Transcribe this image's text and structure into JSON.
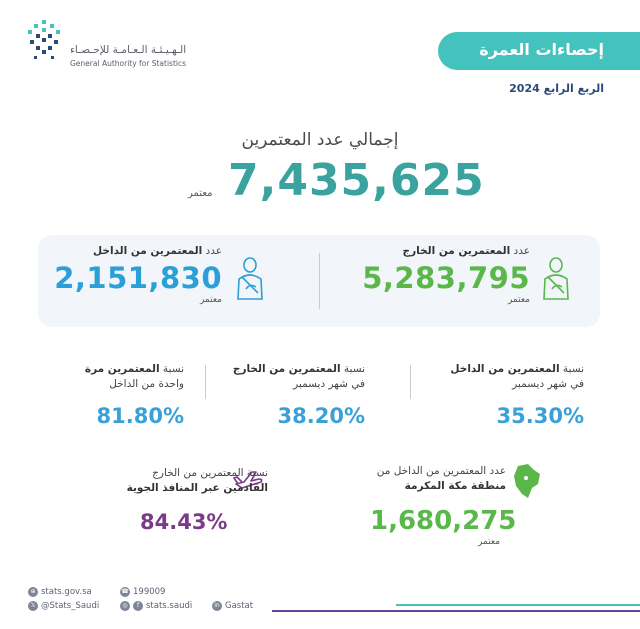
{
  "header": {
    "logo_ar": "الـهـيـئـة الـعـامـة للإحـصـاء",
    "logo_en": "General Authority for Statistics",
    "title": "إحصاءات العمرة",
    "quarter": "الربع الرابع 2024"
  },
  "total": {
    "label": "إجمالي عدد المعتمرين",
    "value": "7,435,625",
    "unit": "معتمر"
  },
  "card": {
    "outside_label_prefix": "عدد ",
    "outside_label_bold": "المعتمرين من الخارج",
    "outside_value": "5,283,795",
    "outside_unit": "معتمر",
    "inside_label_prefix": "عدد ",
    "inside_label_bold": "المعتمرين من الداخل",
    "inside_value": "2,151,830",
    "inside_unit": "معتمر"
  },
  "percentages": [
    {
      "line1_prefix": "نسبة ",
      "line1_bold": "المعتمرين من الداخل",
      "line2": "في شهر ديسمبر",
      "value": "35.30%"
    },
    {
      "line1_prefix": "نسبة ",
      "line1_bold": "المعتمرين من الخارج",
      "line2": "في شهر ديسمبر",
      "value": "38.20%"
    },
    {
      "line1_prefix": "نسبة ",
      "line1_bold": "المعتمرين مرة",
      "line2": "واحدة من الداخل",
      "value": "81.80%"
    }
  ],
  "makkah": {
    "line1": "عدد المعتمرين من الداخل من",
    "line2": "منطقة مكة المكرمة",
    "value": "1,680,275",
    "unit": "معتمر"
  },
  "air": {
    "line1": "نسبة المعتمرين من الخارج",
    "line2": "القادمين عبر المنافذ الجوية",
    "value": "84.43%"
  },
  "footer": {
    "website": "stats.gov.sa",
    "phone": "199009",
    "twitter": "@Stats_Saudi",
    "social": "stats.saudi",
    "linkedin": "Gastat"
  },
  "colors": {
    "teal": "#44c2bd",
    "total": "#3aa39f",
    "green": "#5ab84a",
    "blue": "#2a9fd8",
    "purple": "#7b3a8a"
  }
}
